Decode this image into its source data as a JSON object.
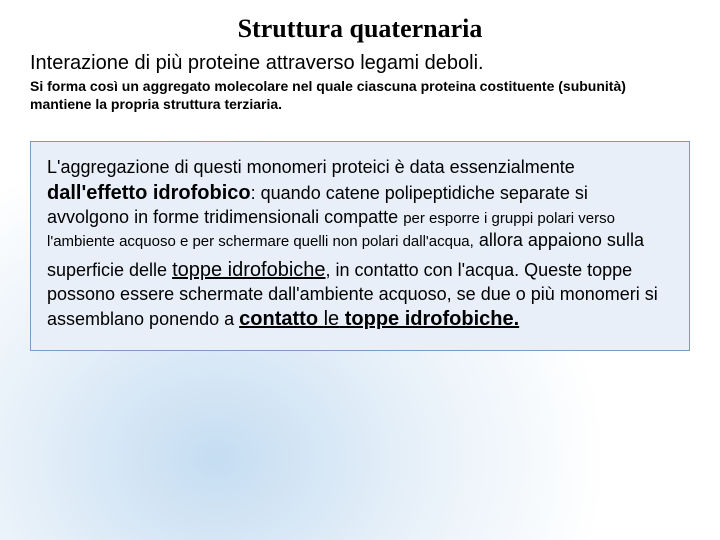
{
  "title": "Struttura quaternaria",
  "subtitle": "Interazione di più proteine attraverso legami deboli.",
  "sub_desc": "Si forma così un aggregato molecolare nel quale ciascuna proteina costituente (subunità) mantiene la propria struttura terziaria.",
  "box": {
    "p1_a": "L'aggregazione di questi monomeri proteici è data essenzialmente ",
    "p1_b": "dall'effetto idrofobico",
    "p1_c": ": quando catene polipeptidiche separate si avvolgono in forme tridimensionali compatte ",
    "p1_d": "per esporre i gruppi polari verso l'ambiente acquoso e per schermare quelli non polari dall'acqua,",
    "p1_e": " allora appaiono sulla",
    "p2_a": "superficie delle ",
    "p2_b": "toppe idrofobiche",
    "p2_c": ", in contatto con l'acqua. Queste toppe possono essere schermate dall'ambiente acquoso, se due o più monomeri si assemblano ponendo a ",
    "p2_d": "contatto ",
    "p2_e": "le",
    "p2_f": " toppe idrofobiche."
  },
  "colors": {
    "box_bg": "#e8eff9",
    "box_border": "#7a9bc4",
    "gradient_inner": "#c5ddf2",
    "gradient_outer": "#ffffff"
  }
}
